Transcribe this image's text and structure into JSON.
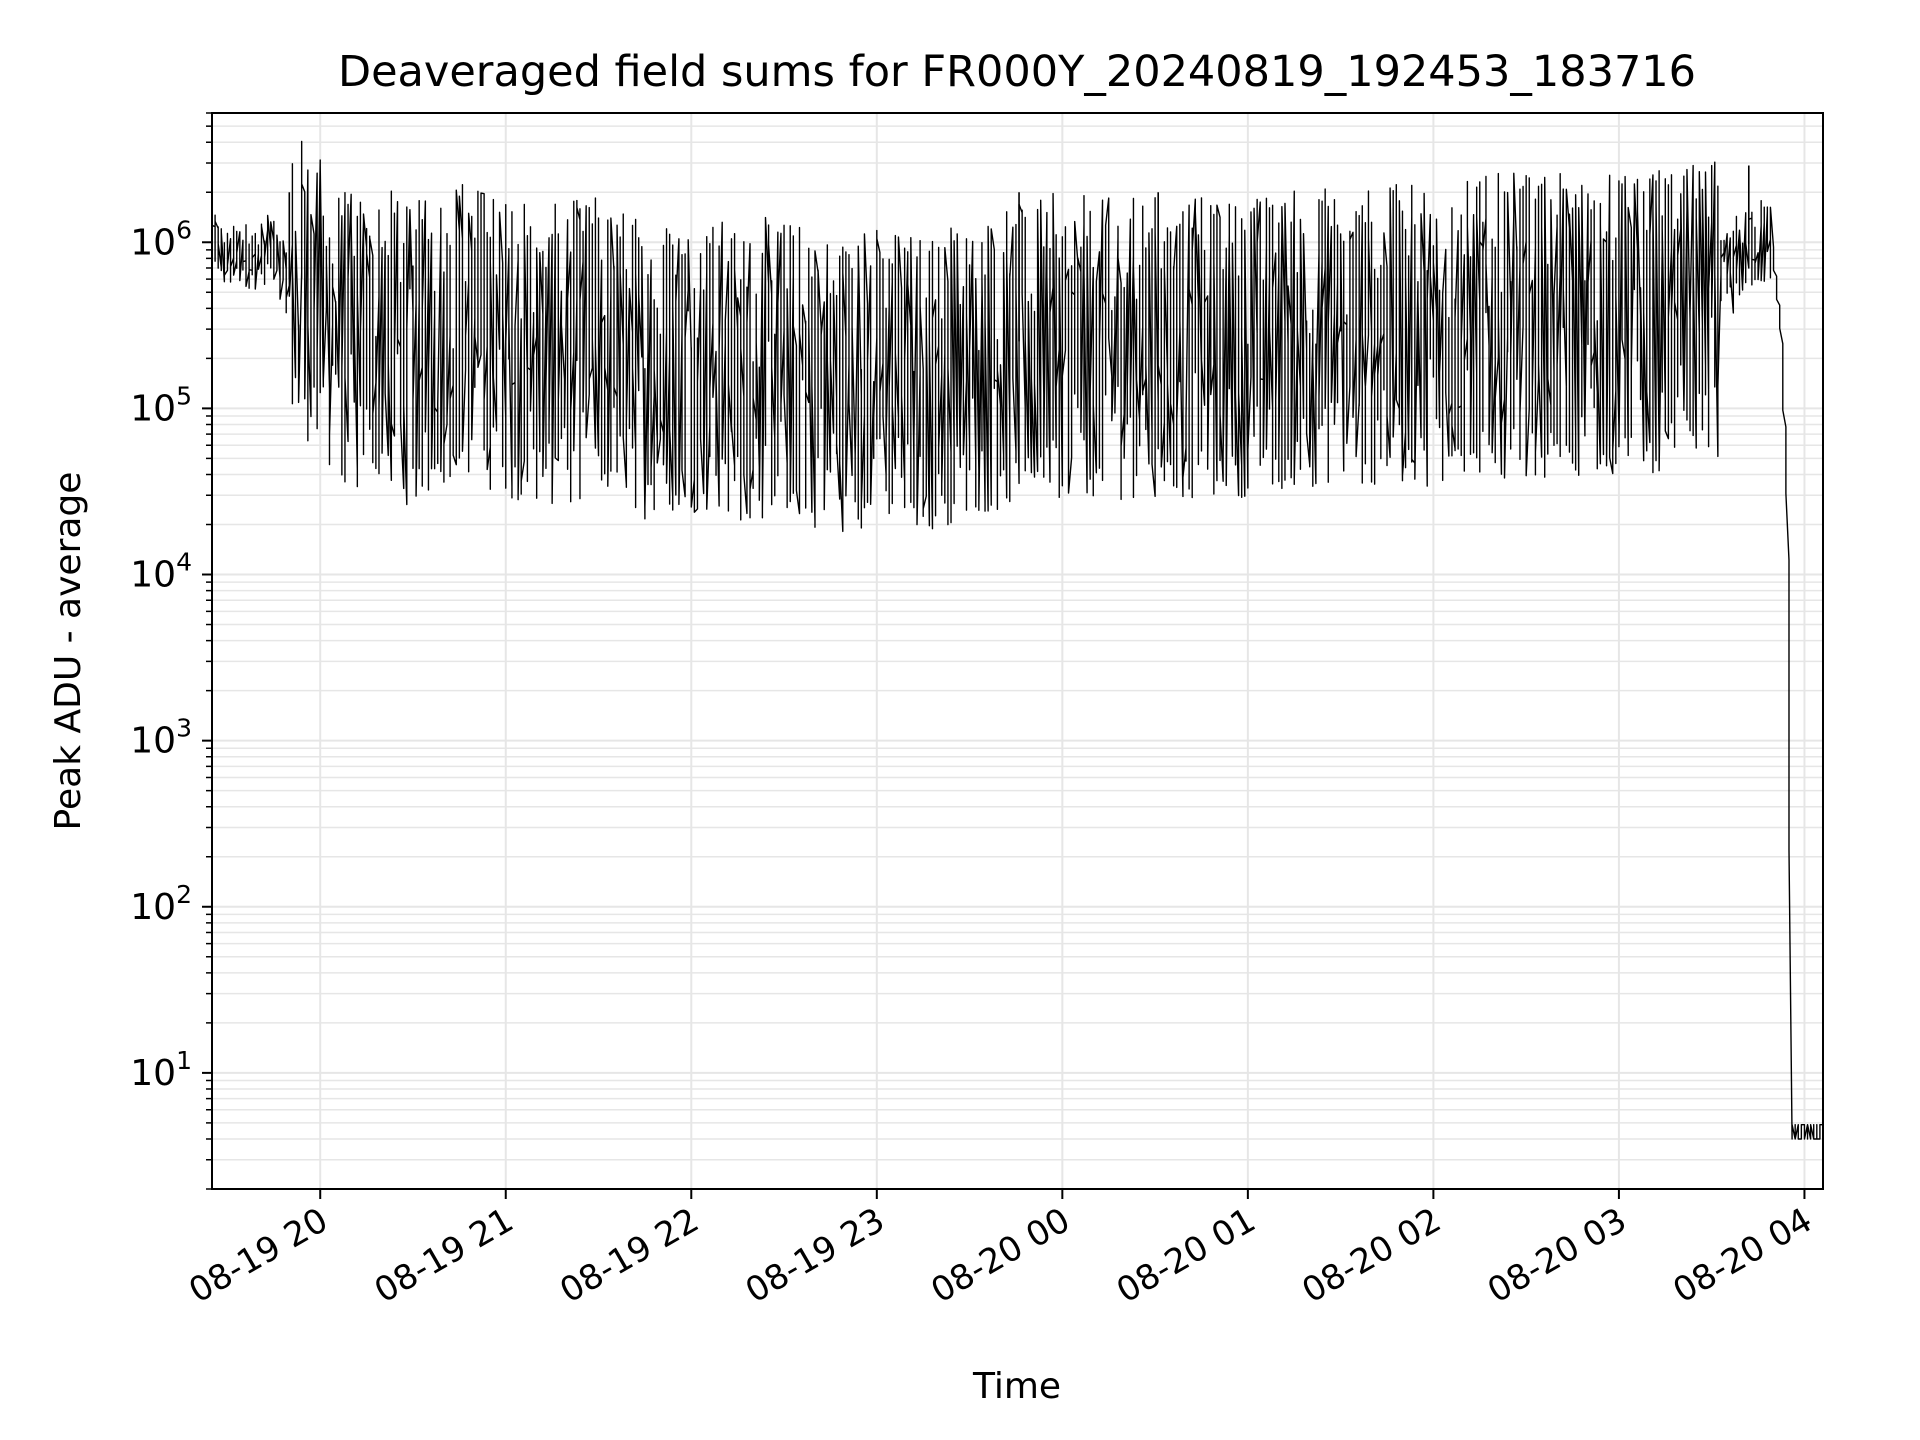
{
  "chart_data": {
    "type": "line",
    "title": "Deaveraged field sums for FR000Y_20240819_192453_183716",
    "xlabel": "Time",
    "ylabel": "Peak ADU - average",
    "yscale": "log",
    "grid": true,
    "ylim": [
      2,
      6000000
    ],
    "xlim": [
      "2024-08-19 19:25",
      "2024-08-20 04:06"
    ],
    "x_ticks": [
      {
        "t": "2024-08-19 20:00",
        "label": "08-19 20"
      },
      {
        "t": "2024-08-19 21:00",
        "label": "08-19 21"
      },
      {
        "t": "2024-08-19 22:00",
        "label": "08-19 22"
      },
      {
        "t": "2024-08-19 23:00",
        "label": "08-19 23"
      },
      {
        "t": "2024-08-20 00:00",
        "label": "08-20 00"
      },
      {
        "t": "2024-08-20 01:00",
        "label": "08-20 01"
      },
      {
        "t": "2024-08-20 02:00",
        "label": "08-20 02"
      },
      {
        "t": "2024-08-20 03:00",
        "label": "08-20 03"
      },
      {
        "t": "2024-08-20 04:00",
        "label": "08-20 04"
      }
    ],
    "y_ticks": [
      {
        "value": 10,
        "base": "10",
        "exp": "1"
      },
      {
        "value": 100,
        "base": "10",
        "exp": "2"
      },
      {
        "value": 1000,
        "base": "10",
        "exp": "3"
      },
      {
        "value": 10000,
        "base": "10",
        "exp": "4"
      },
      {
        "value": 100000,
        "base": "10",
        "exp": "5"
      },
      {
        "value": 1000000,
        "base": "10",
        "exp": "6"
      }
    ],
    "line_color": "#000000",
    "grid_color": "#e6e6e6",
    "series": [
      {
        "x": [
          "2024-08-19 19:25",
          "2024-08-19 19:30",
          "2024-08-19 19:35",
          "2024-08-19 19:40",
          "2024-08-19 19:45",
          "2024-08-19 19:50",
          "2024-08-19 19:55",
          "2024-08-19 20:00",
          "2024-08-19 20:10",
          "2024-08-19 20:20",
          "2024-08-19 20:30",
          "2024-08-19 20:45",
          "2024-08-19 21:00",
          "2024-08-19 21:15",
          "2024-08-19 21:30",
          "2024-08-19 21:45",
          "2024-08-19 22:00",
          "2024-08-19 22:15",
          "2024-08-19 22:30",
          "2024-08-19 22:45",
          "2024-08-19 23:00",
          "2024-08-19 23:15",
          "2024-08-19 23:30",
          "2024-08-19 23:45",
          "2024-08-20 00:00",
          "2024-08-20 00:15",
          "2024-08-20 00:30",
          "2024-08-20 00:45",
          "2024-08-20 01:00",
          "2024-08-20 01:15",
          "2024-08-20 01:30",
          "2024-08-20 01:45",
          "2024-08-20 02:00",
          "2024-08-20 02:15",
          "2024-08-20 02:30",
          "2024-08-20 02:45",
          "2024-08-20 03:00",
          "2024-08-20 03:15",
          "2024-08-20 03:30",
          "2024-08-20 03:40",
          "2024-08-20 03:45",
          "2024-08-20 03:50",
          "2024-08-20 03:53",
          "2024-08-20 03:55",
          "2024-08-20 03:56",
          "2024-08-20 03:57",
          "2024-08-20 04:06"
        ],
        "y": [
          1200000,
          800000,
          900000,
          850000,
          1000000,
          600000,
          700000,
          500000,
          300000,
          350000,
          250000,
          400000,
          300000,
          250000,
          300000,
          220000,
          250000,
          200000,
          220000,
          180000,
          200000,
          180000,
          220000,
          250000,
          300000,
          280000,
          300000,
          280000,
          300000,
          320000,
          350000,
          330000,
          350000,
          380000,
          400000,
          380000,
          400000,
          420000,
          450000,
          900000,
          1100000,
          1000000,
          300000,
          30000,
          200,
          4,
          4
        ]
      }
    ],
    "notable_peaks": [
      {
        "x": "2024-08-19 19:50",
        "y": 2000000
      },
      {
        "x": "2024-08-19 23:46",
        "y": 2000000
      },
      {
        "x": "2024-08-20 00:31",
        "y": 2000000
      },
      {
        "x": "2024-08-20 03:42",
        "y": 2900000
      }
    ]
  }
}
